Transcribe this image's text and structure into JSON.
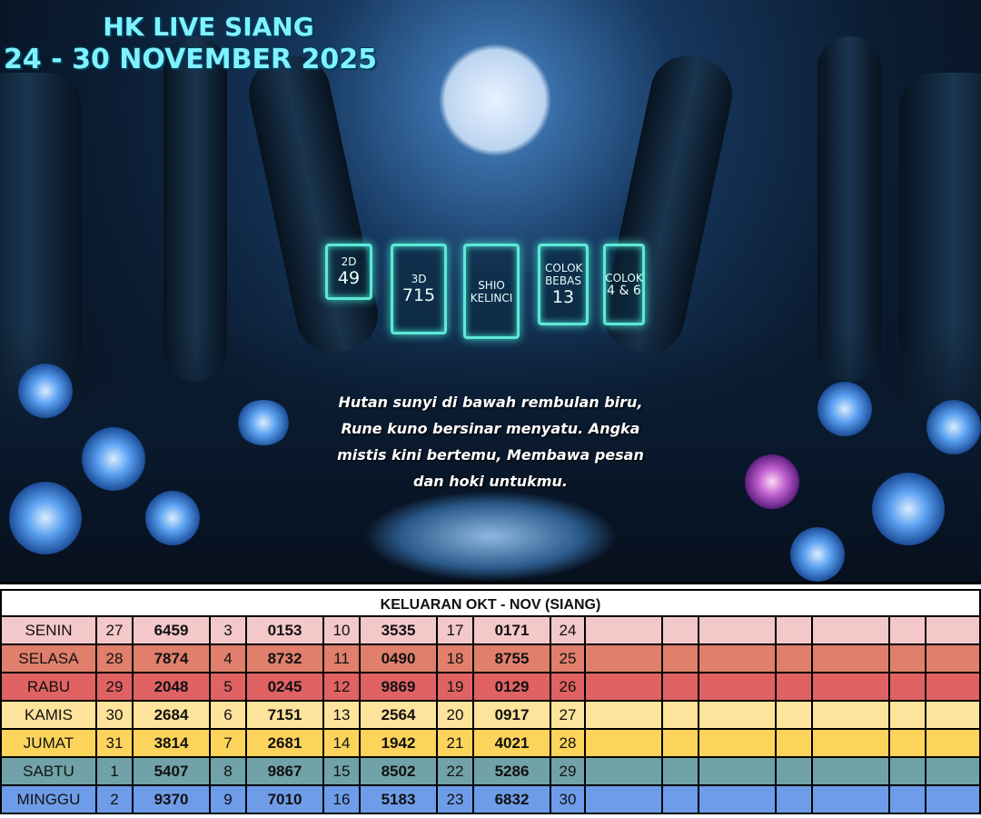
{
  "title": {
    "line1": "HK LIVE SIANG",
    "line2": "24 - 30 NOVEMBER 2025"
  },
  "predictions": [
    {
      "label": "2D",
      "value": "49"
    },
    {
      "label": "3D",
      "value": "715"
    },
    {
      "label": "SHIO",
      "value": "KELINCI"
    },
    {
      "label": "COLOK BEBAS",
      "value": "13"
    },
    {
      "label": "COLOK",
      "value": "4 & 6"
    }
  ],
  "poem": [
    "Hutan sunyi di bawah rembulan biru,",
    "Rune kuno bersinar menyatu. Angka",
    "mistis kini bertemu, Membawa pesan",
    "dan hoki untukmu."
  ],
  "table": {
    "title": "KELUARAN OKT - NOV (SIANG)",
    "rows": [
      {
        "day": "SENIN",
        "color": "#f4c7c9",
        "cells": [
          "27",
          "6459",
          "3",
          "0153",
          "10",
          "3535",
          "17",
          "0171",
          "24"
        ]
      },
      {
        "day": "SELASA",
        "color": "#e07f6c",
        "cells": [
          "28",
          "7874",
          "4",
          "8732",
          "11",
          "0490",
          "18",
          "8755",
          "25"
        ]
      },
      {
        "day": "RABU",
        "color": "#e06263",
        "cells": [
          "29",
          "2048",
          "5",
          "0245",
          "12",
          "9869",
          "19",
          "0129",
          "26"
        ]
      },
      {
        "day": "KAMIS",
        "color": "#fde39b",
        "cells": [
          "30",
          "2684",
          "6",
          "7151",
          "13",
          "2564",
          "20",
          "0917",
          "27"
        ]
      },
      {
        "day": "JUMAT",
        "color": "#fdd45b",
        "cells": [
          "31",
          "3814",
          "7",
          "2681",
          "14",
          "1942",
          "21",
          "4021",
          "28"
        ]
      },
      {
        "day": "SABTU",
        "color": "#70a2a8",
        "cells": [
          "1",
          "5407",
          "8",
          "9867",
          "15",
          "8502",
          "22",
          "5286",
          "29"
        ]
      },
      {
        "day": "MINGGU",
        "color": "#6e9ce8",
        "cells": [
          "2",
          "9370",
          "9",
          "7010",
          "16",
          "5183",
          "23",
          "6832",
          "30"
        ]
      }
    ]
  }
}
